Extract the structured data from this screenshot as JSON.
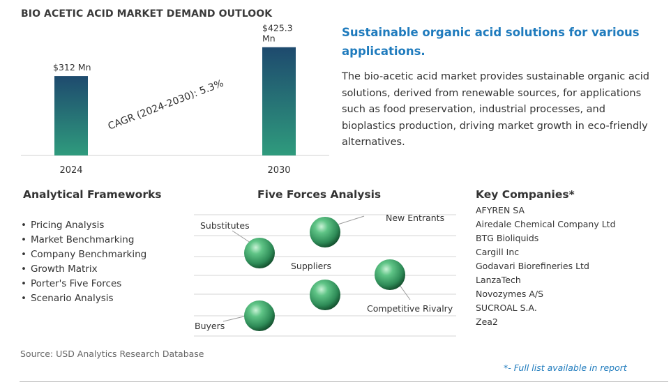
{
  "chart_data": {
    "type": "bar",
    "title": "BIO ACETIC ACID MARKET DEMAND OUTLOOK",
    "categories": [
      "2024",
      "2030"
    ],
    "values": [
      312,
      425.3
    ],
    "data_labels": [
      "$312 Mn",
      "$425.3 Mn"
    ],
    "annotation": "CAGR (2024-2030):  5.3%",
    "ylim": [
      0,
      430
    ],
    "grid": false,
    "colors": {
      "bar_top": "#1e4a6e",
      "bar_bottom": "#2f9b7d"
    }
  },
  "headline": "Sustainable organic acid solutions for various applications.",
  "description": "The bio-acetic acid market provides sustainable organic acid solutions, derived from renewable sources, for applications such as food preservation, industrial processes, and bioplastics production, driving market growth in eco-friendly alternatives.",
  "frameworks": {
    "title": "Analytical Frameworks",
    "items": [
      "Pricing Analysis",
      "Market Benchmarking",
      "Company Benchmarking",
      "Growth Matrix",
      "Porter's Five Forces",
      "Scenario Analysis"
    ]
  },
  "five_forces": {
    "title": "Five Forces Analysis",
    "labels": {
      "new_entrants": "New Entrants",
      "substitutes": "Substitutes",
      "suppliers": "Suppliers",
      "competitive_rivalry": "Competitive Rivalry",
      "buyers": "Buyers"
    },
    "sphere_color": "#2e8b57"
  },
  "companies": {
    "title": "Key Companies*",
    "items": [
      "AFYREN SA",
      "Airedale Chemical Company Ltd",
      "BTG Bioliquids",
      "Cargill Inc",
      "Godavari Biorefineries Ltd",
      "LanzaTech",
      "Novozymes A/S",
      "SUCROAL S.A.",
      "Zea2"
    ]
  },
  "source": "Source: USD Analytics Research Database",
  "footnote": "*- Full list available in report"
}
